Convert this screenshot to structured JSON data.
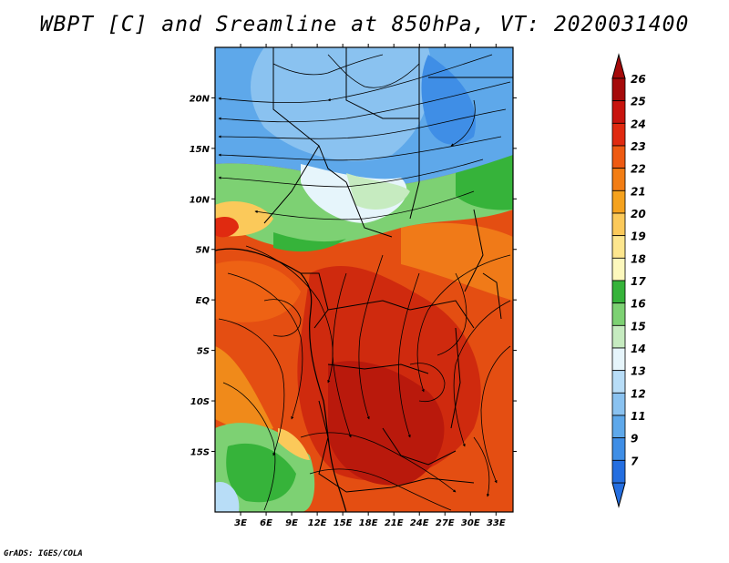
{
  "title": "WBPT [C] and Sreamline at 850hPa, VT: 2020031400",
  "footer": "GrADS: IGES/COLA",
  "map": {
    "lat_range": [
      -21,
      25
    ],
    "lon_range": [
      0,
      35
    ],
    "lat_ticks": [
      {
        "label": "20N",
        "value": 20
      },
      {
        "label": "15N",
        "value": 15
      },
      {
        "label": "10N",
        "value": 10
      },
      {
        "label": "5N",
        "value": 5
      },
      {
        "label": "EQ",
        "value": 0
      },
      {
        "label": "5S",
        "value": -5
      },
      {
        "label": "10S",
        "value": -10
      },
      {
        "label": "15S",
        "value": -15
      }
    ],
    "lon_ticks": [
      {
        "label": "3E",
        "value": 3
      },
      {
        "label": "6E",
        "value": 6
      },
      {
        "label": "9E",
        "value": 9
      },
      {
        "label": "12E",
        "value": 12
      },
      {
        "label": "15E",
        "value": 15
      },
      {
        "label": "18E",
        "value": 18
      },
      {
        "label": "21E",
        "value": 21
      },
      {
        "label": "24E",
        "value": 24
      },
      {
        "label": "27E",
        "value": 27
      },
      {
        "label": "30E",
        "value": 30
      },
      {
        "label": "33E",
        "value": 33
      }
    ]
  },
  "colorbar": {
    "levels": [
      {
        "label": "26",
        "color": "#a50a0a"
      },
      {
        "label": "25",
        "color": "#c8140e"
      },
      {
        "label": "24",
        "color": "#e02a10"
      },
      {
        "label": "23",
        "color": "#ee5a12"
      },
      {
        "label": "22",
        "color": "#f27d14"
      },
      {
        "label": "21",
        "color": "#f5a21e"
      },
      {
        "label": "20",
        "color": "#fbc95a"
      },
      {
        "label": "19",
        "color": "#fde68e"
      },
      {
        "label": "18",
        "color": "#fdf8bd"
      },
      {
        "label": "17",
        "color": "#36b33a"
      },
      {
        "label": "16",
        "color": "#7dd173"
      },
      {
        "label": "15",
        "color": "#c6ebc0"
      },
      {
        "label": "14",
        "color": "#e6f5fb"
      },
      {
        "label": "13",
        "color": "#b8ddf7"
      },
      {
        "label": "12",
        "color": "#8ac2f0"
      },
      {
        "label": "11",
        "color": "#5ea8ea"
      },
      {
        "label": "9",
        "color": "#3f8ee6"
      },
      {
        "label": "7",
        "color": "#246ee0"
      }
    ],
    "top_arrow_color": "#a50a0a",
    "bottom_arrow_color": "#246ee0"
  }
}
